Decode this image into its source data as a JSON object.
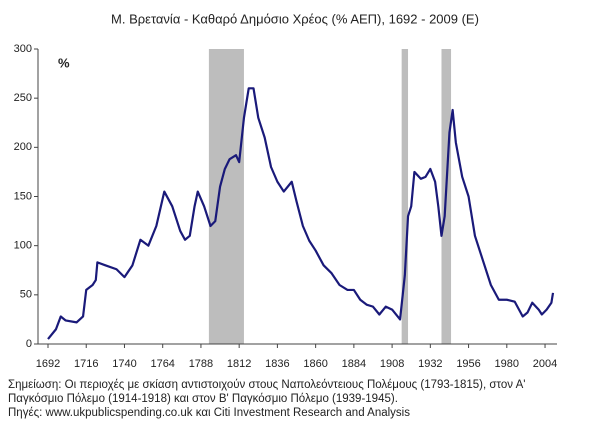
{
  "chart_data": {
    "type": "line",
    "title": "Μ. Βρετανία - Καθαρό Δημόσιο Χρέος (% ΑΕΠ), 1692 - 2009 (Ε)",
    "ylabel": "%",
    "x": [
      1692,
      1697,
      1700,
      1703,
      1710,
      1714,
      1716,
      1720,
      1722,
      1723,
      1728,
      1735,
      1740,
      1745,
      1750,
      1755,
      1760,
      1765,
      1770,
      1775,
      1778,
      1781,
      1784,
      1786,
      1790,
      1794,
      1797,
      1800,
      1803,
      1806,
      1810,
      1812,
      1815,
      1818,
      1821,
      1824,
      1828,
      1832,
      1836,
      1840,
      1845,
      1848,
      1852,
      1856,
      1860,
      1865,
      1870,
      1875,
      1880,
      1884,
      1888,
      1892,
      1896,
      1900,
      1904,
      1908,
      1913,
      1916,
      1918,
      1920,
      1922,
      1926,
      1929,
      1932,
      1935,
      1937,
      1939,
      1941,
      1944,
      1946,
      1948,
      1952,
      1956,
      1960,
      1965,
      1970,
      1975,
      1980,
      1985,
      1990,
      1993,
      1996,
      2000,
      2002,
      2005,
      2008,
      2009
    ],
    "series": [
      {
        "name": "Καθαρό Δημόσιο Χρέος",
        "color": "#1a1a7a",
        "values": [
          5,
          15,
          28,
          24,
          22,
          28,
          55,
          60,
          65,
          83,
          80,
          76,
          68,
          80,
          106,
          100,
          120,
          155,
          140,
          115,
          106,
          110,
          140,
          155,
          140,
          120,
          125,
          160,
          178,
          188,
          192,
          185,
          230,
          260,
          260,
          230,
          210,
          180,
          165,
          155,
          165,
          145,
          120,
          105,
          95,
          80,
          72,
          60,
          55,
          55,
          45,
          40,
          38,
          30,
          38,
          35,
          25,
          70,
          130,
          140,
          175,
          168,
          170,
          178,
          165,
          140,
          110,
          130,
          215,
          238,
          205,
          170,
          150,
          110,
          85,
          60,
          45,
          45,
          43,
          28,
          32,
          42,
          35,
          30,
          35,
          42,
          52
        ]
      }
    ],
    "shaded_periods": [
      [
        1793,
        1815
      ],
      [
        1914,
        1918
      ],
      [
        1939,
        1945
      ]
    ],
    "xlim": [
      1692,
      2009
    ],
    "xticks": [
      1692,
      1716,
      1740,
      1764,
      1788,
      1812,
      1836,
      1860,
      1884,
      1908,
      1932,
      1956,
      1980,
      2004
    ],
    "ylim": [
      0,
      300
    ],
    "yticks": [
      0,
      50,
      100,
      150,
      200,
      250,
      300
    ],
    "notes": [
      "Σημείωση: Οι περιοχές με σκίαση αντιστοιχούν στους Ναπολεόντειους Πολέμους (1793-1815), στον Α'",
      "Παγκόσμιο Πόλεμο (1914-1918) και στον Β' Παγκόσμιο Πόλεμο (1939-1945).",
      "Πηγές: www.ukpublicspending.co.uk και Citi Investment Research and Analysis"
    ]
  }
}
